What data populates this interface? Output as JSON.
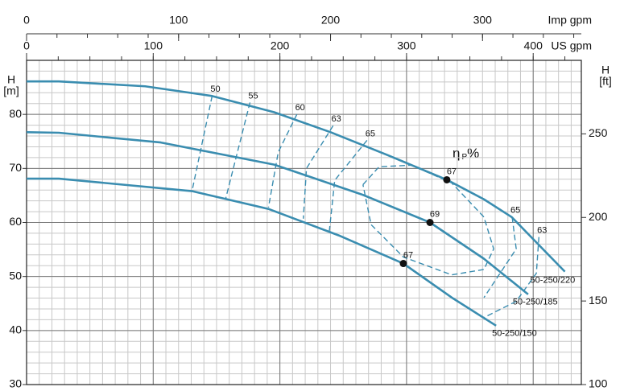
{
  "chart_data": {
    "type": "line",
    "x2label": "Imp gpm",
    "xlabel": "US gpm",
    "ylabel": [
      "H",
      "[m]"
    ],
    "y2label": [
      "H",
      "[ft]"
    ],
    "xlim": [
      0,
      438
    ],
    "xticks": [
      0,
      100,
      200,
      300,
      400
    ],
    "xminorticks": [
      0,
      25,
      50,
      75,
      100,
      125,
      150,
      175,
      200,
      225,
      250,
      275,
      300,
      325,
      350,
      375,
      400,
      425
    ],
    "xgrid": [
      0,
      10,
      20,
      30,
      40,
      50,
      60,
      70,
      80,
      90,
      100,
      110,
      120,
      130,
      140,
      150,
      160,
      170,
      180,
      190,
      200,
      210,
      220,
      230,
      240,
      250,
      260,
      270,
      280,
      290,
      300,
      310,
      320,
      330,
      340,
      350,
      360,
      370,
      380,
      390,
      400,
      410,
      420,
      430
    ],
    "x2lim": [
      0,
      365
    ],
    "x2ticks": [
      0,
      100,
      200,
      300
    ],
    "x2minorticks": [
      0,
      20,
      40,
      60,
      80,
      100,
      120,
      140,
      160,
      180,
      200,
      220,
      240,
      260,
      280,
      300,
      320,
      340,
      360
    ],
    "ylim": [
      30,
      90
    ],
    "yticks": [
      30,
      40,
      50,
      60,
      70,
      80
    ],
    "ygrid": [
      30,
      32,
      34,
      36,
      38,
      40,
      42,
      44,
      46,
      48,
      50,
      52,
      54,
      56,
      58,
      60,
      62,
      64,
      66,
      68,
      70,
      72,
      74,
      76,
      78,
      80,
      82,
      84,
      86,
      88,
      90
    ],
    "y2lim": [
      100,
      294
    ],
    "y2ticks": [
      100,
      150,
      200,
      250
    ],
    "grid": true,
    "color": "#3a8db0",
    "series": [
      {
        "name": "50-250/220",
        "x": [
          0,
          25.5,
          93.6,
          146.5,
          195.5,
          240,
          284.7,
          331.8,
          361,
          383,
          425
        ],
        "y": [
          86.1,
          86.1,
          85.2,
          83.4,
          80.4,
          76.7,
          72.5,
          67.9,
          64.3,
          61.0,
          50.9
        ]
      },
      {
        "name": "50-250/185",
        "x": [
          0,
          25.5,
          106,
          195.5,
          265.6,
          318.5,
          361,
          396
        ],
        "y": [
          76.7,
          76.6,
          74.8,
          70.7,
          65.1,
          60,
          53.3,
          46.7
        ]
      },
      {
        "name": "50-250/150",
        "x": [
          0,
          25.5,
          130.6,
          191,
          246.5,
          297.5,
          335.7,
          370.7
        ],
        "y": [
          68.1,
          68.1,
          65.8,
          62.5,
          57.6,
          52.4,
          46.1,
          40.9
        ]
      }
    ],
    "efficiency_label": {
      "symbol": "η",
      "sub": "P",
      "unit": "%"
    },
    "efficiency_lines": [
      {
        "label": "50",
        "x": [
          146.5,
          130.6
        ],
        "y": [
          83.4,
          65.8
        ]
      },
      {
        "label": "55",
        "x": [
          176.4,
          157.3
        ],
        "y": [
          82.2,
          64.5
        ]
      },
      {
        "label": "60",
        "x": [
          213.4,
          198.7,
          191
        ],
        "y": [
          80,
          73,
          62.8
        ]
      },
      {
        "label": "63",
        "x": [
          242,
          221,
          218.5
        ],
        "y": [
          77.9,
          70,
          60.7
        ]
      },
      {
        "label": "65",
        "x": [
          268.8,
          243.3,
          238.9
        ],
        "y": [
          75.2,
          67.8,
          58.1
        ]
      },
      {
        "x": [
          265.6,
          278.3,
          303.8,
          335.7,
          361.1,
          368.8,
          361.1,
          335.7,
          297.5,
          272,
          265.6
        ],
        "y": [
          67.0,
          70.3,
          70.6,
          67.3,
          61.0,
          55.1,
          51.3,
          50.3,
          53.6,
          59.6,
          67.0
        ]
      },
      {
        "label": "65",
        "x": [
          383.4,
          386.6,
          361.1
        ],
        "y": [
          61.0,
          55.1,
          46.1
        ]
      },
      {
        "label": "63",
        "x": [
          404.5,
          402.5,
          386.6,
          361.1
        ],
        "y": [
          57.3,
          50.6,
          45.4,
          42.4
        ]
      }
    ],
    "points": [
      {
        "label": "67",
        "x": 331.8,
        "y": 67.9
      },
      {
        "label": "69",
        "x": 318.5,
        "y": 60
      },
      {
        "label": "67",
        "x": 297.5,
        "y": 52.4
      }
    ]
  }
}
